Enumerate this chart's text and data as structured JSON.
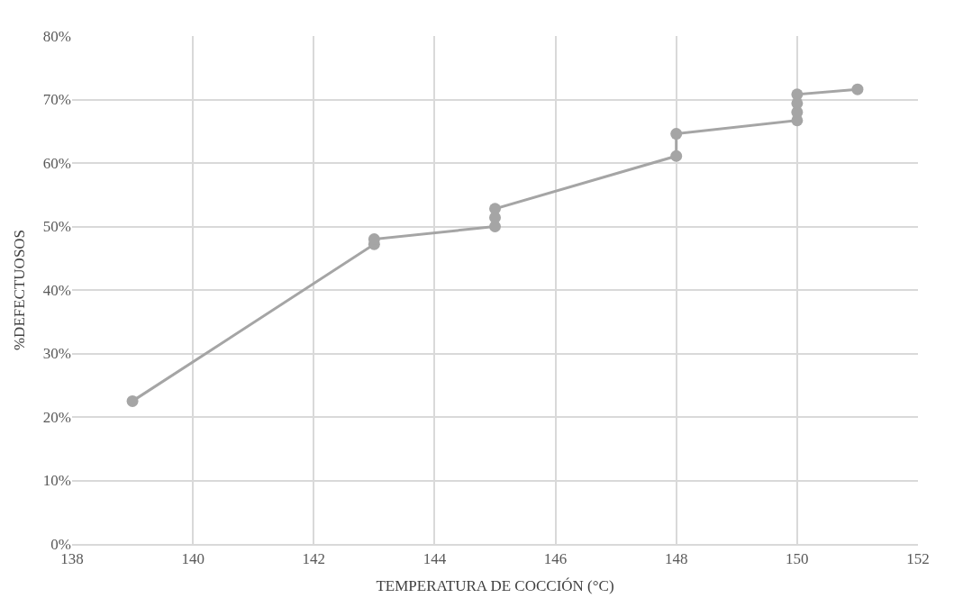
{
  "chart_data": {
    "type": "line",
    "xlabel": "TEMPERATURA DE COCCIÓN (°C)",
    "ylabel": "%DEFECTUOSOS",
    "x": [
      139,
      143,
      143,
      145,
      145,
      145,
      148,
      148,
      150,
      150,
      150,
      150,
      151
    ],
    "series": [
      {
        "color": "#a5a5a5",
        "values": [
          22.5,
          47.2,
          48.0,
          50.0,
          51.4,
          52.8,
          61.1,
          64.6,
          66.7,
          68.0,
          69.4,
          70.8,
          71.6
        ]
      }
    ],
    "xlim": [
      138,
      152
    ],
    "xticks": [
      138,
      140,
      142,
      144,
      146,
      148,
      150,
      152
    ],
    "ylim": [
      0,
      80
    ],
    "yticks": [
      {
        "value": 0,
        "label": "0%"
      },
      {
        "value": 10,
        "label": "10%"
      },
      {
        "value": 20,
        "label": "20%"
      },
      {
        "value": 30,
        "label": "30%"
      },
      {
        "value": 40,
        "label": "40%"
      },
      {
        "value": 50,
        "label": "50%"
      },
      {
        "value": 60,
        "label": "60%"
      },
      {
        "value": 70,
        "label": "70%"
      },
      {
        "value": 80,
        "label": "80%"
      }
    ],
    "grid": true,
    "marker": "circle",
    "line_style": "solid"
  }
}
